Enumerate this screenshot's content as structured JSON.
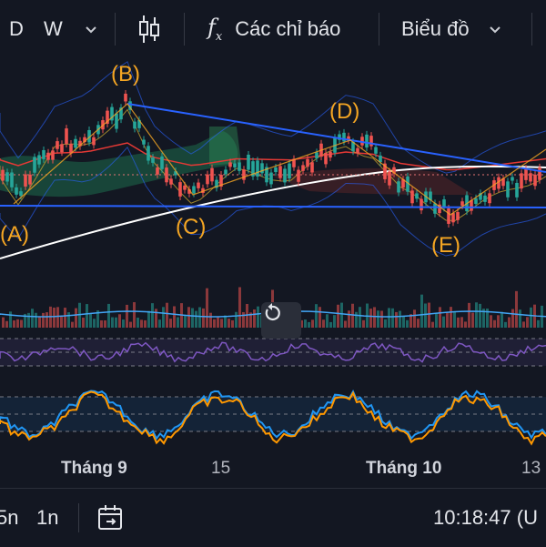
{
  "toolbar": {
    "interval_d": "D",
    "interval_w": "W",
    "indicators_label": "Các chỉ báo",
    "chart_label": "Biểu đồ"
  },
  "wave_labels": {
    "a": "(A)",
    "b": "(B)",
    "c": "(C)",
    "d": "(D)",
    "e": "(E)"
  },
  "time_axis": {
    "t1": "Tháng 9",
    "t2": "15",
    "t3": "Tháng 10",
    "t4": "13"
  },
  "bottombar": {
    "range_5n": "5n",
    "range_1n": "1n",
    "clock": "10:18:47 (U"
  },
  "colors": {
    "background": "#131722",
    "wave_label": "#f5a623",
    "trendline": "#2962ff",
    "up_candle": "#26a69a",
    "down_candle": "#ef5350",
    "ma_white": "#ffffff",
    "rsi": "#7e57c2",
    "stoch_k": "#2196f3",
    "stoch_d": "#ff9800"
  },
  "icons": {
    "chevron": "chevron-down-icon",
    "candles": "candlestick-icon",
    "fx": "fx-icon",
    "reset": "reset-icon",
    "goto": "calendar-goto-icon"
  }
}
